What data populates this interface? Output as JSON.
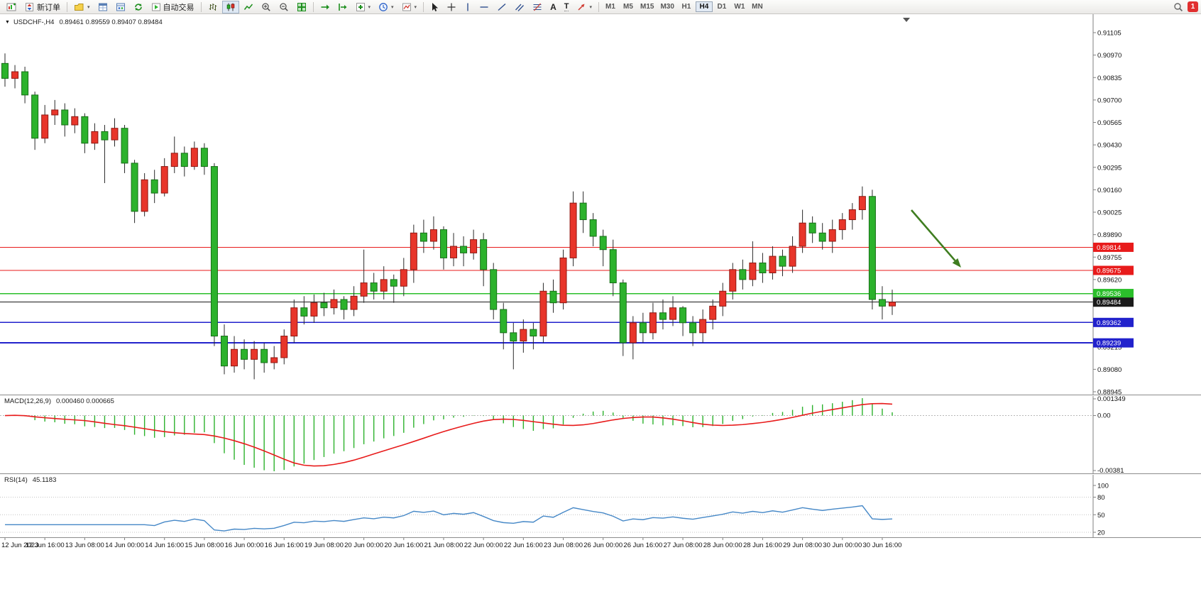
{
  "toolbar": {
    "new_order_label": "新订单",
    "autotrading_label": "自动交易",
    "timeframes": [
      "M1",
      "M5",
      "M15",
      "M30",
      "H1",
      "H4",
      "D1",
      "W1",
      "MN"
    ],
    "active_timeframe": "H4",
    "notification_count": "1"
  },
  "chart": {
    "title": "USDCHF-,H4",
    "ohlc_text": "0.89461 0.89559 0.89407 0.89484"
  },
  "colors": {
    "bull": "#e8352a",
    "bull_border": "#8f1812",
    "bear": "#2cb22c",
    "bear_border": "#176e17",
    "wick": "#2a2a2a",
    "line_red": "#e81b1b",
    "line_green": "#2bbf2b",
    "line_blue": "#2222cc",
    "bid": "#1b1b1b",
    "macd_hist": "#2cb22c",
    "macd_signal": "#e81b1b",
    "rsi": "#4688c7",
    "arrow": "#3f7d20",
    "axis_text": "#111111"
  },
  "chart_data": {
    "type": "candlestick",
    "title": "USDCHF-,H4",
    "ohlc_display": {
      "open": "0.89461",
      "high": "0.89559",
      "low": "0.89407",
      "close": "0.89484"
    },
    "price_axis_labels": [
      "0.91105",
      "0.90970",
      "0.90835",
      "0.90700",
      "0.90565",
      "0.90430",
      "0.90295",
      "0.90160",
      "0.90025",
      "0.89890",
      "0.89755",
      "0.89620",
      "0.89485",
      "0.89350",
      "0.89215",
      "0.89080",
      "0.88945"
    ],
    "time_labels": [
      "12 Jun 2023",
      "12 Jun 16:00",
      "13 Jun 08:00",
      "14 Jun 00:00",
      "14 Jun 16:00",
      "15 Jun 08:00",
      "16 Jun 00:00",
      "16 Jun 16:00",
      "19 Jun 08:00",
      "20 Jun 00:00",
      "20 Jun 16:00",
      "21 Jun 08:00",
      "22 Jun 00:00",
      "22 Jun 16:00",
      "23 Jun 08:00",
      "26 Jun 00:00",
      "26 Jun 16:00",
      "27 Jun 08:00",
      "28 Jun 00:00",
      "28 Jun 16:00",
      "29 Jun 08:00",
      "30 Jun 00:00",
      "30 Jun 16:00"
    ],
    "candles": [
      [
        0.9092,
        0.9098,
        0.9078,
        0.9083
      ],
      [
        0.9083,
        0.9091,
        0.9077,
        0.9087
      ],
      [
        0.9087,
        0.909,
        0.9068,
        0.9073
      ],
      [
        0.9073,
        0.9075,
        0.904,
        0.9047
      ],
      [
        0.9047,
        0.9067,
        0.9044,
        0.9061
      ],
      [
        0.9061,
        0.907,
        0.9055,
        0.9064
      ],
      [
        0.9064,
        0.9068,
        0.9048,
        0.9055
      ],
      [
        0.9055,
        0.9065,
        0.905,
        0.906
      ],
      [
        0.906,
        0.9062,
        0.9038,
        0.9044
      ],
      [
        0.9044,
        0.9056,
        0.904,
        0.9051
      ],
      [
        0.9051,
        0.9055,
        0.902,
        0.9046
      ],
      [
        0.9046,
        0.9059,
        0.9042,
        0.9053
      ],
      [
        0.9053,
        0.9055,
        0.9026,
        0.9032
      ],
      [
        0.9032,
        0.9034,
        0.8996,
        0.9003
      ],
      [
        0.9003,
        0.9026,
        0.9,
        0.9022
      ],
      [
        0.9022,
        0.9028,
        0.9008,
        0.9014
      ],
      [
        0.9014,
        0.9035,
        0.9012,
        0.903
      ],
      [
        0.903,
        0.9048,
        0.9026,
        0.9038
      ],
      [
        0.9038,
        0.9042,
        0.9024,
        0.903
      ],
      [
        0.903,
        0.9045,
        0.9028,
        0.9041
      ],
      [
        0.9041,
        0.9044,
        0.9025,
        0.903
      ],
      [
        0.903,
        0.9032,
        0.8922,
        0.8928
      ],
      [
        0.8928,
        0.8935,
        0.8905,
        0.891
      ],
      [
        0.891,
        0.8928,
        0.8906,
        0.892
      ],
      [
        0.892,
        0.8926,
        0.8908,
        0.8914
      ],
      [
        0.8914,
        0.8925,
        0.8902,
        0.892
      ],
      [
        0.892,
        0.8924,
        0.8906,
        0.8912
      ],
      [
        0.8912,
        0.8922,
        0.8908,
        0.8915
      ],
      [
        0.8915,
        0.8932,
        0.8911,
        0.8928
      ],
      [
        0.8928,
        0.895,
        0.8924,
        0.8945
      ],
      [
        0.8945,
        0.8952,
        0.8935,
        0.894
      ],
      [
        0.894,
        0.8953,
        0.8936,
        0.8948
      ],
      [
        0.8948,
        0.8954,
        0.894,
        0.8945
      ],
      [
        0.8945,
        0.8956,
        0.8941,
        0.895
      ],
      [
        0.895,
        0.8952,
        0.8938,
        0.8944
      ],
      [
        0.8944,
        0.8958,
        0.894,
        0.8952
      ],
      [
        0.8952,
        0.898,
        0.8948,
        0.896
      ],
      [
        0.896,
        0.8966,
        0.895,
        0.8955
      ],
      [
        0.8955,
        0.897,
        0.895,
        0.8962
      ],
      [
        0.8962,
        0.8965,
        0.8948,
        0.8958
      ],
      [
        0.8958,
        0.8975,
        0.8952,
        0.8968
      ],
      [
        0.8968,
        0.8995,
        0.896,
        0.899
      ],
      [
        0.899,
        0.8998,
        0.8978,
        0.8985
      ],
      [
        0.8985,
        0.9,
        0.898,
        0.8992
      ],
      [
        0.8992,
        0.8994,
        0.8968,
        0.8975
      ],
      [
        0.8975,
        0.899,
        0.897,
        0.8982
      ],
      [
        0.8982,
        0.8988,
        0.897,
        0.8978
      ],
      [
        0.8978,
        0.8992,
        0.8974,
        0.8986
      ],
      [
        0.8986,
        0.899,
        0.8958,
        0.8968
      ],
      [
        0.8968,
        0.8972,
        0.8938,
        0.8944
      ],
      [
        0.8944,
        0.8948,
        0.892,
        0.893
      ],
      [
        0.893,
        0.8936,
        0.8908,
        0.8925
      ],
      [
        0.8925,
        0.8938,
        0.8918,
        0.8932
      ],
      [
        0.8932,
        0.8936,
        0.892,
        0.8928
      ],
      [
        0.8928,
        0.896,
        0.8924,
        0.8955
      ],
      [
        0.8955,
        0.8962,
        0.8942,
        0.8948
      ],
      [
        0.8948,
        0.898,
        0.8944,
        0.8975
      ],
      [
        0.8975,
        0.9015,
        0.897,
        0.9008
      ],
      [
        0.9008,
        0.9015,
        0.899,
        0.8998
      ],
      [
        0.8998,
        0.9002,
        0.8982,
        0.8988
      ],
      [
        0.8988,
        0.8992,
        0.897,
        0.898
      ],
      [
        0.898,
        0.8986,
        0.8952,
        0.896
      ],
      [
        0.896,
        0.8962,
        0.8916,
        0.8924
      ],
      [
        0.8924,
        0.894,
        0.8914,
        0.8936
      ],
      [
        0.8936,
        0.8942,
        0.8924,
        0.893
      ],
      [
        0.893,
        0.8948,
        0.8926,
        0.8942
      ],
      [
        0.8942,
        0.895,
        0.8932,
        0.8938
      ],
      [
        0.8938,
        0.8952,
        0.8934,
        0.8945
      ],
      [
        0.8945,
        0.8946,
        0.8928,
        0.8936
      ],
      [
        0.8936,
        0.894,
        0.8922,
        0.893
      ],
      [
        0.893,
        0.8944,
        0.8924,
        0.8938
      ],
      [
        0.8938,
        0.895,
        0.8932,
        0.8946
      ],
      [
        0.8946,
        0.896,
        0.894,
        0.8955
      ],
      [
        0.8955,
        0.8972,
        0.895,
        0.8968
      ],
      [
        0.8968,
        0.8974,
        0.8956,
        0.8962
      ],
      [
        0.8962,
        0.8985,
        0.8958,
        0.8972
      ],
      [
        0.8972,
        0.8978,
        0.896,
        0.8966
      ],
      [
        0.8966,
        0.8982,
        0.8962,
        0.8976
      ],
      [
        0.8976,
        0.898,
        0.8964,
        0.897
      ],
      [
        0.897,
        0.8988,
        0.8966,
        0.8982
      ],
      [
        0.8982,
        0.9004,
        0.8978,
        0.8996
      ],
      [
        0.8996,
        0.9,
        0.8984,
        0.899
      ],
      [
        0.899,
        0.8996,
        0.898,
        0.8985
      ],
      [
        0.8985,
        0.8998,
        0.8978,
        0.8992
      ],
      [
        0.8992,
        0.9002,
        0.8986,
        0.8998
      ],
      [
        0.8998,
        0.9008,
        0.8992,
        0.9004
      ],
      [
        0.9004,
        0.9018,
        0.8998,
        0.9012
      ],
      [
        0.9012,
        0.9016,
        0.8944,
        0.895
      ],
      [
        0.895,
        0.8958,
        0.8938,
        0.8946
      ],
      [
        0.89461,
        0.89559,
        0.89407,
        0.89484
      ]
    ],
    "hlines": [
      {
        "price": 0.89814,
        "label": "0.89814",
        "color": "#e81b1b",
        "width": 1.1
      },
      {
        "price": 0.89675,
        "label": "0.89675",
        "color": "#e81b1b",
        "width": 1.1
      },
      {
        "price": 0.89536,
        "label": "0.89536",
        "color": "#2bbf2b",
        "width": 1.6
      },
      {
        "price": 0.89484,
        "label": "0.89484",
        "color": "#1b1b1b",
        "width": 1.0
      },
      {
        "price": 0.89362,
        "label": "0.89362",
        "color": "#2222cc",
        "width": 1.8
      },
      {
        "price": 0.89239,
        "label": "0.89239",
        "color": "#2222cc",
        "width": 1.8
      }
    ],
    "annotations": {
      "arrow": {
        "from": [
          1284,
          296
        ],
        "to": [
          1354,
          377
        ],
        "color": "#3f7d20"
      }
    },
    "macd": {
      "label": "MACD(12,26,9)",
      "values_text": "0.000460 0.000665",
      "params": [
        12,
        26,
        9
      ],
      "axis_labels": [
        "0.001349",
        "0.00",
        "-0.00381"
      ]
    },
    "rsi": {
      "label": "RSI(14)",
      "value_text": "45.1183",
      "levels": [
        80,
        50,
        20
      ],
      "axis_labels": [
        "100",
        "80",
        "50",
        "20"
      ]
    }
  }
}
